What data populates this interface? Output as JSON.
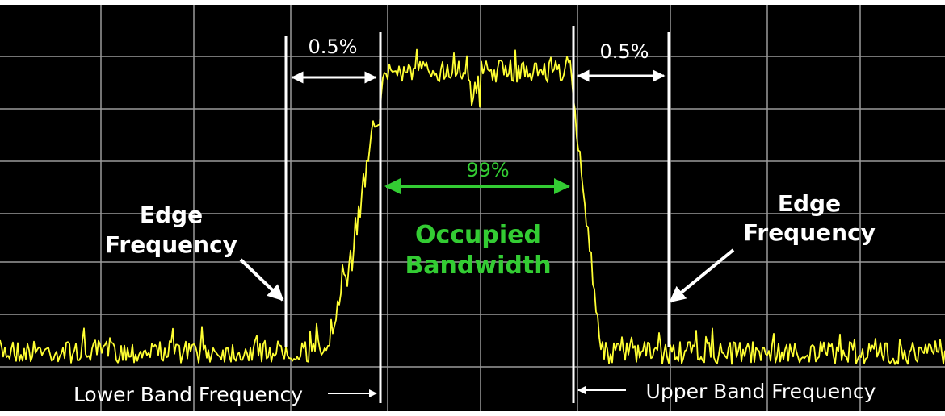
{
  "diagram": {
    "left_edge": {
      "line1": "Edge",
      "line2": "Frequency"
    },
    "right_edge": {
      "line1": "Edge",
      "line2": "Frequency"
    },
    "left_percent": "0.5%",
    "right_percent": "0.5%",
    "center_percent": "99%",
    "occupied": {
      "line1": "Occupied",
      "line2": "Bandwidth"
    },
    "lower_band": "Lower Band Frequency",
    "upper_band": "Upper Band Frequency"
  },
  "colors": {
    "background": "#000000",
    "grid": "#9a9a9a",
    "trace": "#ffff33",
    "marker": "#ffffff",
    "accent": "#33cc33"
  }
}
